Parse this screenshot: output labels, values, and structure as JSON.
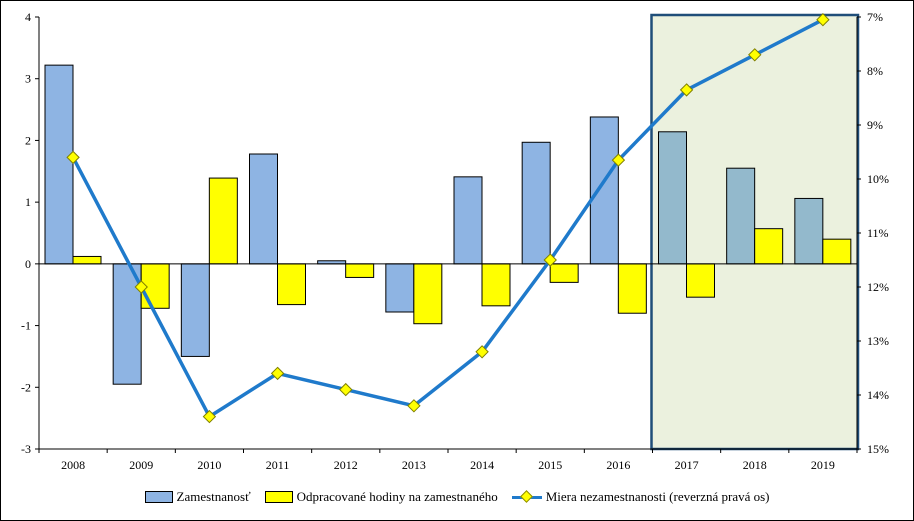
{
  "chart_data": {
    "type": "bar",
    "categories": [
      "2008",
      "2009",
      "2010",
      "2011",
      "2012",
      "2013",
      "2014",
      "2015",
      "2016",
      "2017",
      "2018",
      "2019"
    ],
    "series": [
      {
        "name": "Zamestnanosť",
        "kind": "bar",
        "axis": "left",
        "values": [
          3.22,
          -1.95,
          -1.5,
          1.78,
          0.05,
          -0.78,
          1.41,
          1.97,
          2.38,
          2.14,
          1.55,
          1.06
        ],
        "color": "#8EB4E3",
        "forecast_color": "#93B9CC"
      },
      {
        "name": "Odpracované hodiny na zamestnaného",
        "kind": "bar",
        "axis": "left",
        "values": [
          0.12,
          -0.72,
          1.39,
          -0.66,
          -0.22,
          -0.97,
          -0.68,
          -0.3,
          -0.8,
          -0.54,
          0.57,
          0.4
        ],
        "color": "#FFFF00"
      },
      {
        "name": "Miera nezamestnanosti (reverzná pravá os)",
        "kind": "line",
        "axis": "right",
        "values": [
          9.6,
          12.0,
          14.4,
          13.6,
          13.9,
          14.2,
          13.2,
          11.5,
          9.65,
          8.35,
          7.7,
          7.05
        ],
        "color": "#1F7ACB",
        "marker_color": "#FFFF00"
      }
    ],
    "yleft": {
      "min": -3,
      "max": 4,
      "ticks": [
        "4",
        "3",
        "2",
        "1",
        "0",
        "-1",
        "-2",
        "-3"
      ]
    },
    "yright": {
      "min": 7,
      "max": 15,
      "reversed": true,
      "ticks": [
        "7%",
        "8%",
        "9%",
        "10%",
        "11%",
        "12%",
        "13%",
        "14%",
        "15%"
      ]
    },
    "forecast_highlight": {
      "from": "2017",
      "to": "2019",
      "fill": "#EBF1DE",
      "border": "#1F4E79"
    },
    "legend_position": "bottom",
    "grid": false
  }
}
